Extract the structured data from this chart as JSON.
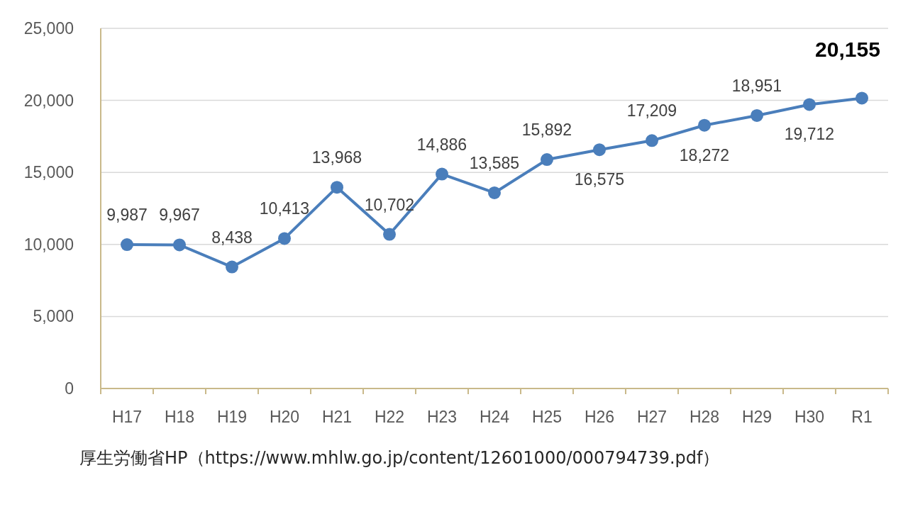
{
  "chart_data": {
    "type": "line",
    "categories": [
      "H17",
      "H18",
      "H19",
      "H20",
      "H21",
      "H22",
      "H23",
      "H24",
      "H25",
      "H26",
      "H27",
      "H28",
      "H29",
      "H30",
      "R1"
    ],
    "series": [
      {
        "color": "#4a7ebb",
        "values": [
          9987,
          9967,
          8438,
          10413,
          13968,
          10702,
          14886,
          13585,
          15892,
          16575,
          17209,
          18272,
          18951,
          19712,
          20155
        ]
      }
    ],
    "ylim": [
      0,
      25000
    ],
    "yticks": [
      {
        "value": 0,
        "label": "0"
      },
      {
        "value": 5000,
        "label": "5,000"
      },
      {
        "value": 10000,
        "label": "10,000"
      },
      {
        "value": 15000,
        "label": "15,000"
      },
      {
        "value": 20000,
        "label": "20,000"
      },
      {
        "value": 25000,
        "label": "25,000"
      }
    ],
    "value_labels": [
      "9,987",
      "9,967",
      "8,438",
      "10,413",
      "13,968",
      "10,702",
      "14,886",
      "13,585",
      "15,892",
      "16,575",
      "17,209",
      "18,272",
      "18,951",
      "19,712",
      "20,155"
    ],
    "grid": "y",
    "marker": "circle",
    "line_style": "solid",
    "annotations": [
      "厚生労働省HP（https://www.mhlw.go.jp/content/12601000/000794739.pdf）"
    ]
  }
}
